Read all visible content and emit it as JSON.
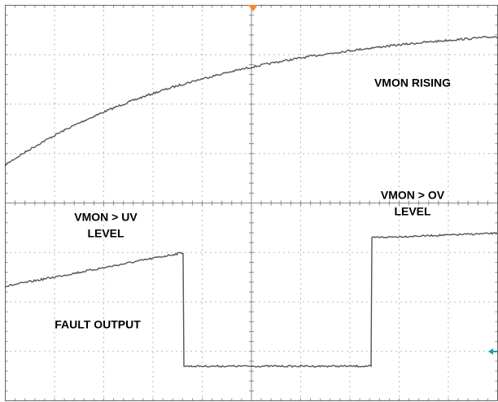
{
  "annotations": {
    "vmon_rising": "VMON RISING",
    "uv_line1": "VMON > UV",
    "uv_line2": "LEVEL",
    "ov_line1": "VMON > OV",
    "ov_line2": "LEVEL",
    "fault_output": "FAULT OUTPUT"
  }
}
